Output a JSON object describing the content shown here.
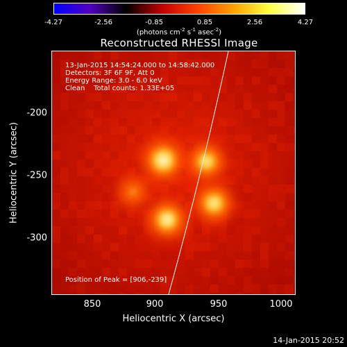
{
  "colorbar": {
    "ticks": [
      "-4.27",
      "-2.56",
      "-0.85",
      "0.85",
      "2.56",
      "4.27"
    ],
    "units_prefix": "(photons cm",
    "units_exp1": "-2",
    "units_mid1": " s",
    "units_exp2": "-1",
    "units_mid2": " asec",
    "units_exp3": "-2",
    "units_suffix": ")",
    "range": [
      -4.27,
      4.27
    ],
    "colormap": [
      "#0000ff",
      "#5000c0",
      "#000000",
      "#c00000",
      "#ff4000",
      "#ffa000",
      "#ffff40",
      "#ffffff"
    ]
  },
  "title": "Reconstructed RHESSI Image",
  "info": {
    "time": "13-Jan-2015 14:54:24.000 to 14:58:42.000",
    "detectors": "Detectors: 3F 6F 9F, Att 0",
    "energy": "Energy Range: 3.0 - 6.0 keV",
    "clean": "Clean    Total counts: 1.33E+05",
    "peak": "Position of Peak = [906,-239]"
  },
  "axes": {
    "xlabel": "Heliocentric X (arcsec)",
    "ylabel": "Heliocentric Y (arcsec)",
    "xticks": [
      "850",
      "900",
      "950",
      "1000"
    ],
    "yticks": [
      "-200",
      "-250",
      "-300"
    ],
    "xrange": [
      818,
      1010
    ],
    "yrange": [
      -345,
      -153
    ]
  },
  "sources": [
    {
      "x": 906,
      "y": -239,
      "intensity": 1.0
    },
    {
      "x": 940,
      "y": -240,
      "intensity": 0.72
    },
    {
      "x": 946,
      "y": -273,
      "intensity": 0.78
    },
    {
      "x": 909,
      "y": -286,
      "intensity": 0.85
    },
    {
      "x": 882,
      "y": -264,
      "intensity": 0.28
    }
  ],
  "footer": {
    "timestamp": "14-Jan-2015 20:52"
  }
}
